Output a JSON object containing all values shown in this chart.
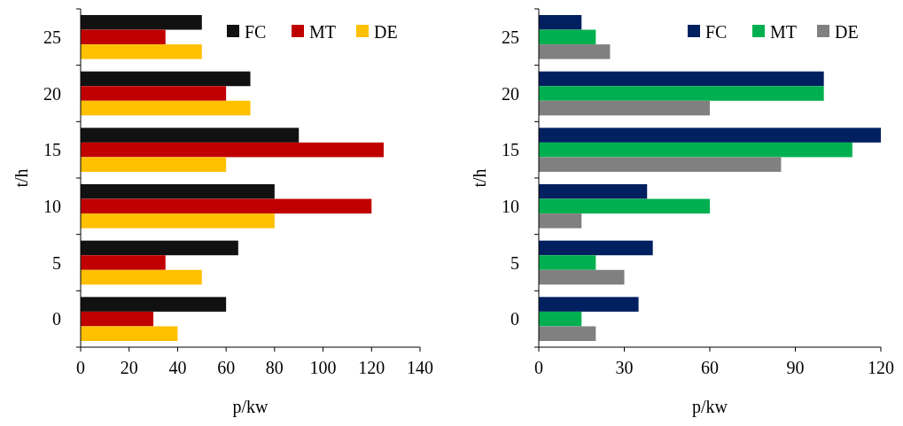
{
  "chart_data": [
    {
      "type": "bar",
      "orientation": "horizontal",
      "xlabel": "p/kw",
      "ylabel": "t/h",
      "categories": [
        "25",
        "20",
        "15",
        "10",
        "5",
        "0"
      ],
      "xlim": [
        0,
        140
      ],
      "xticks": [
        0,
        20,
        40,
        60,
        80,
        100,
        120,
        140
      ],
      "legend": "top right",
      "grid": false,
      "series": [
        {
          "name": "FC",
          "color": "#111111",
          "values": [
            50,
            70,
            90,
            80,
            65,
            60
          ]
        },
        {
          "name": "MT",
          "color": "#c00000",
          "values": [
            35,
            60,
            125,
            120,
            35,
            30
          ]
        },
        {
          "name": "DE",
          "color": "#ffc000",
          "values": [
            50,
            70,
            60,
            80,
            50,
            40
          ]
        }
      ]
    },
    {
      "type": "bar",
      "orientation": "horizontal",
      "xlabel": "p/kw",
      "ylabel": "t/h",
      "categories": [
        "25",
        "20",
        "15",
        "10",
        "5",
        "0"
      ],
      "xlim": [
        0,
        120
      ],
      "xticks": [
        0,
        30,
        60,
        90,
        120
      ],
      "legend": "top right",
      "grid": false,
      "series": [
        {
          "name": "FC",
          "color": "#002060",
          "values": [
            15,
            100,
            120,
            38,
            40,
            35
          ]
        },
        {
          "name": "MT",
          "color": "#00b050",
          "values": [
            20,
            100,
            110,
            60,
            20,
            15
          ]
        },
        {
          "name": "DE",
          "color": "#808080",
          "values": [
            25,
            60,
            85,
            15,
            30,
            20
          ]
        }
      ]
    }
  ]
}
